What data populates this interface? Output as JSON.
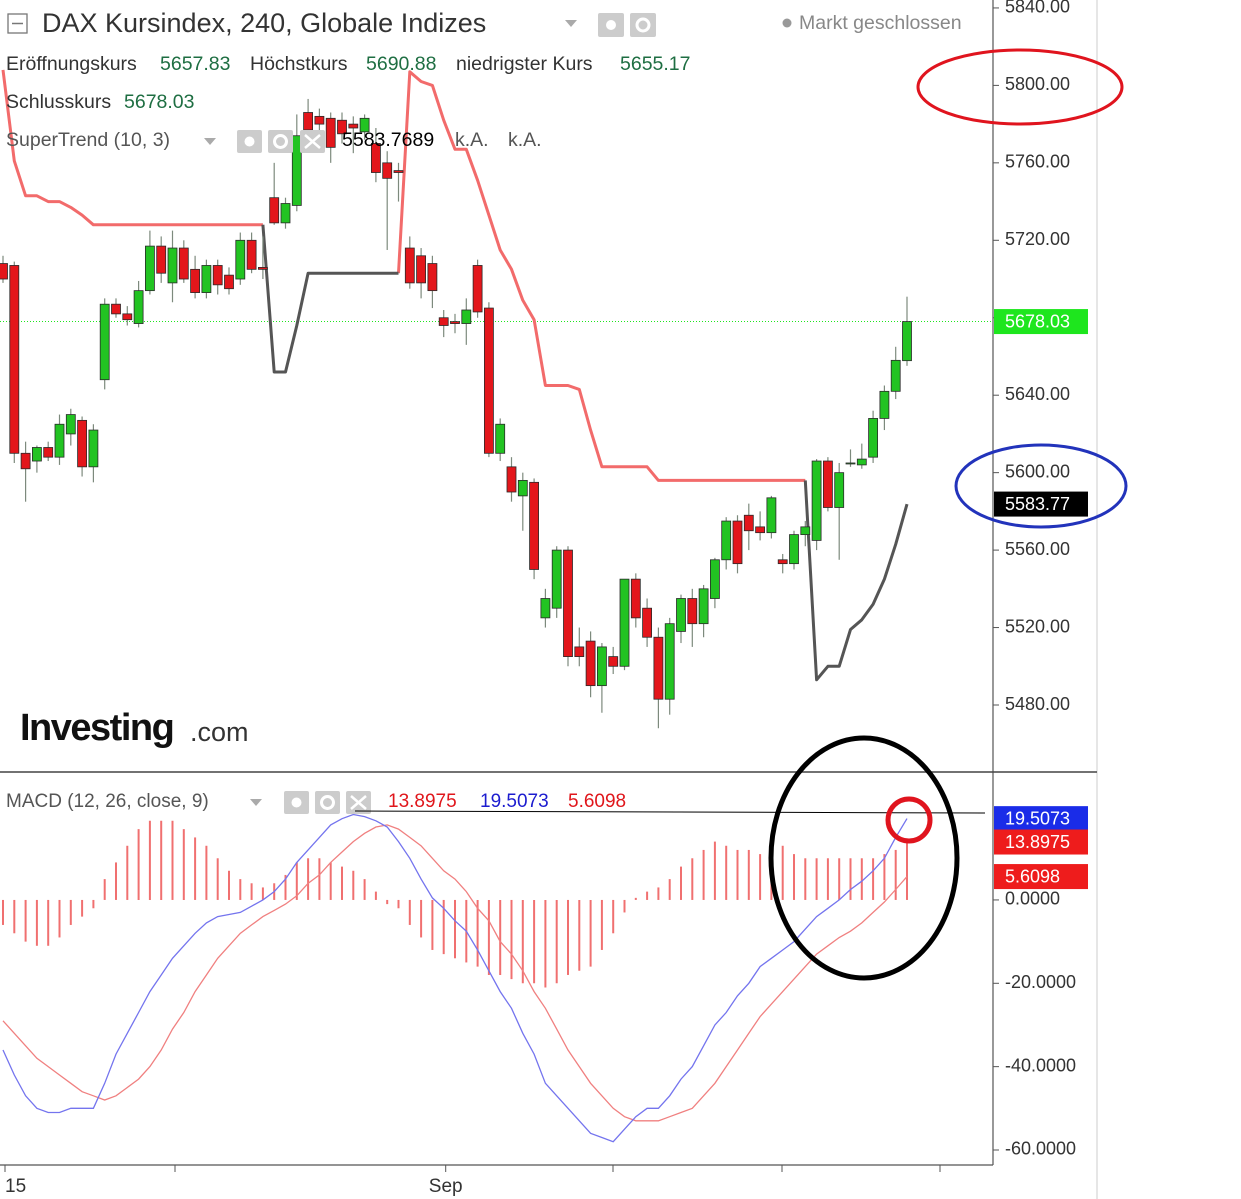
{
  "chart_data": [
    {
      "type": "candlestick",
      "title": "DAX Kursindex, 240, Globale Indizes",
      "status": "Markt geschlossen",
      "legend_labels": {
        "open": "Eröffnungskurs",
        "high": "Höchstkurs",
        "low": "niedrigster Kurs",
        "close": "Schlusskurs"
      },
      "brand": {
        "name": "Investing",
        "suffix": ".com"
      },
      "up_color": "#22c322",
      "down_color": "#e3161b",
      "last_price_color": "#1ee61e",
      "open": [
        5708,
        5707,
        5610,
        5606,
        5613,
        5608,
        5620,
        5627,
        5603,
        5648,
        5687,
        5682,
        5677,
        5694,
        5717,
        5698,
        5716,
        5705,
        5693,
        5707,
        5702,
        5700,
        5720,
        5706,
        5742,
        5729,
        5738,
        5786,
        5784,
        5783,
        5782,
        5780,
        5776,
        5770,
        5760,
        5756,
        5716,
        5712,
        5708,
        5680,
        5678,
        5677,
        5707,
        5685,
        5610,
        5603,
        5588,
        5595,
        5525,
        5530,
        5560,
        5510,
        5513,
        5490,
        5505,
        5500,
        5545,
        5530,
        5515,
        5483,
        5518,
        5535,
        5522,
        5535,
        5555,
        5575,
        5578,
        5572,
        5569,
        5555,
        5553,
        5568,
        5565,
        5606,
        5582,
        5605,
        5604,
        5608,
        5628,
        5642,
        5657.83
      ],
      "high": [
        5712,
        5709,
        5616,
        5614,
        5616,
        5630,
        5633,
        5629,
        5625,
        5690,
        5690,
        5686,
        5699,
        5725,
        5722,
        5725,
        5720,
        5712,
        5710,
        5710,
        5706,
        5724,
        5724,
        5722,
        5760,
        5742,
        5785,
        5793,
        5788,
        5786,
        5786,
        5784,
        5785,
        5778,
        5766,
        5760,
        5722,
        5716,
        5712,
        5684,
        5682,
        5690,
        5710,
        5688,
        5628,
        5608,
        5600,
        5597,
        5540,
        5562,
        5562,
        5520,
        5518,
        5512,
        5510,
        5545,
        5548,
        5535,
        5520,
        5525,
        5537,
        5540,
        5542,
        5556,
        5577,
        5578,
        5584,
        5580,
        5588,
        5558,
        5570,
        5575,
        5607,
        5608,
        5605,
        5612,
        5615,
        5632,
        5645,
        5665,
        5690.88
      ],
      "low": [
        5698,
        5605,
        5585,
        5600,
        5606,
        5604,
        5614,
        5598,
        5595,
        5643,
        5680,
        5676,
        5675,
        5692,
        5698,
        5688,
        5698,
        5690,
        5690,
        5692,
        5692,
        5697,
        5703,
        5700,
        5728,
        5726,
        5735,
        5775,
        5776,
        5760,
        5770,
        5765,
        5772,
        5750,
        5715,
        5740,
        5695,
        5690,
        5685,
        5670,
        5672,
        5666,
        5680,
        5608,
        5606,
        5585,
        5570,
        5545,
        5520,
        5525,
        5500,
        5500,
        5484,
        5476,
        5496,
        5498,
        5520,
        5510,
        5468,
        5475,
        5512,
        5510,
        5515,
        5530,
        5550,
        5548,
        5560,
        5565,
        5566,
        5548,
        5550,
        5562,
        5560,
        5580,
        5555,
        5603,
        5602,
        5605,
        5622,
        5638,
        5655.17
      ],
      "close": [
        5700,
        5610,
        5602,
        5613,
        5608,
        5625,
        5630,
        5603,
        5622,
        5687,
        5682,
        5679,
        5694,
        5717,
        5703,
        5716,
        5700,
        5693,
        5707,
        5697,
        5695,
        5720,
        5705,
        5705,
        5729,
        5739,
        5774,
        5777,
        5780,
        5768,
        5775,
        5778,
        5783,
        5755,
        5752,
        5755,
        5698,
        5698,
        5694,
        5676,
        5677,
        5684,
        5683,
        5610,
        5625,
        5590,
        5596,
        5550,
        5535,
        5560,
        5505,
        5505,
        5490,
        5510,
        5500,
        5545,
        5525,
        5515,
        5483,
        5522,
        5535,
        5522,
        5540,
        5555,
        5575,
        5553,
        5570,
        5569,
        5587,
        5553,
        5568,
        5572,
        5606,
        5582,
        5600,
        5605,
        5607,
        5628,
        5642,
        5658,
        5678.03
      ],
      "indicator": {
        "name": "SuperTrend (10, 3)",
        "na_labels": [
          "k.A.",
          "k.A."
        ],
        "series": [
          {
            "color": "#f26b6b",
            "values": [
              5808,
              5761,
              5743,
              5743,
              5740,
              5740,
              5737,
              5733,
              5728,
              5728,
              5728,
              5728,
              5728,
              5728,
              5728,
              5728,
              5728,
              5728,
              5728,
              5728,
              5728,
              5728,
              5728,
              5728,
              null,
              null,
              null,
              null,
              null,
              null,
              null,
              null,
              null,
              null,
              null,
              5703,
              5807,
              5802,
              5800,
              5782,
              5767,
              5767,
              5751,
              5733,
              5715,
              5705,
              5689,
              5679,
              5645,
              5645,
              5645,
              5643,
              5622,
              5603,
              5603,
              5603,
              5603,
              5603,
              5596,
              5596,
              5596,
              5596,
              5596,
              5596,
              5596,
              5596,
              5596,
              5596,
              5596,
              5596,
              5596,
              5596,
              null,
              null,
              null,
              null,
              null,
              null,
              null,
              null,
              null
            ]
          },
          {
            "color": "#555555",
            "last_value_label": "5583.77",
            "values": [
              null,
              null,
              null,
              null,
              null,
              null,
              null,
              null,
              null,
              null,
              null,
              null,
              null,
              null,
              null,
              null,
              null,
              null,
              null,
              null,
              null,
              null,
              null,
              5728,
              5652,
              5652,
              5676,
              5703,
              5703,
              5703,
              5703,
              5703,
              5703,
              5703,
              5703,
              5703,
              null,
              null,
              null,
              null,
              null,
              null,
              null,
              null,
              null,
              null,
              null,
              null,
              null,
              null,
              null,
              null,
              null,
              null,
              null,
              null,
              null,
              null,
              null,
              null,
              null,
              null,
              null,
              null,
              null,
              null,
              null,
              null,
              null,
              null,
              null,
              5596,
              5493,
              5500,
              5500,
              5519,
              5524,
              5532,
              5545,
              5563,
              5583.7689
            ]
          }
        ]
      },
      "ylim": [
        5445.4,
        5844.1
      ],
      "yticks": [
        {
          "value": 5840,
          "label": "5840.00"
        },
        {
          "value": 5800,
          "label": "5800.00"
        },
        {
          "value": 5760,
          "label": "5760.00"
        },
        {
          "value": 5720,
          "label": "5720.00"
        },
        {
          "value": 5680,
          "label": "5680.00"
        },
        {
          "value": 5640,
          "label": "5640.00"
        },
        {
          "value": 5600,
          "label": "5600.00"
        },
        {
          "value": 5560,
          "label": "5560.00"
        },
        {
          "value": 5520,
          "label": "5520.00"
        },
        {
          "value": 5480,
          "label": "5480.00"
        }
      ]
    },
    {
      "type": "macd",
      "title": "MACD (12, 26, close, 9)",
      "categories": [
        "15",
        null,
        null,
        null,
        null,
        null,
        null,
        null,
        null,
        null,
        null,
        null,
        null,
        null,
        null,
        null,
        null,
        null,
        null,
        null,
        null,
        null,
        null,
        null,
        null,
        null,
        null,
        null,
        null,
        null,
        null,
        null,
        null,
        null,
        null,
        null,
        null,
        null,
        null,
        "Sep",
        null,
        null,
        null,
        null,
        null,
        null,
        null,
        null,
        null,
        null,
        null,
        null,
        null,
        null,
        null,
        null,
        null,
        null,
        null,
        null,
        null,
        null,
        null,
        null,
        null,
        null,
        null,
        null,
        null,
        null,
        null,
        null,
        null,
        null,
        null,
        null,
        null,
        null,
        null,
        null,
        null
      ],
      "histogram": {
        "color": "#f07070",
        "values": [
          -6,
          -8,
          -10,
          -11,
          -11,
          -9,
          -6,
          -4,
          -2,
          5,
          9,
          13,
          17,
          19,
          19,
          19,
          17,
          15,
          13,
          10,
          7,
          5,
          4,
          3,
          4,
          6,
          9,
          10,
          10,
          9,
          8,
          7,
          5,
          2,
          -1,
          -2,
          -6,
          -9,
          -12,
          -13,
          -14,
          -15,
          -16,
          -18,
          -18,
          -19,
          -20,
          -20,
          -21,
          -20,
          -18,
          -17,
          -16,
          -12,
          -8,
          -3,
          0.5,
          2,
          3,
          5,
          8,
          10,
          12,
          14,
          13,
          12,
          12,
          11,
          12,
          13,
          11,
          10,
          10,
          10,
          10,
          10,
          10,
          10,
          11,
          12,
          13.8975
        ]
      },
      "macd": {
        "color": "#7474ee",
        "values": [
          -36,
          -42,
          -47,
          -50,
          -51,
          -51,
          -50,
          -50,
          -50,
          -44,
          -37,
          -32,
          -27,
          -22,
          -18,
          -14,
          -11,
          -8,
          -5.5,
          -4,
          -3.5,
          -3,
          -1.5,
          0,
          2,
          5,
          9,
          12,
          15,
          18,
          19.5,
          20.5,
          20,
          19,
          17.5,
          14,
          10,
          5,
          0.5,
          -2,
          -5,
          -7.5,
          -12,
          -17,
          -22,
          -26,
          -32,
          -37,
          -44,
          -47,
          -50,
          -53,
          -56,
          -57,
          -58,
          -55,
          -52,
          -50,
          -50,
          -47,
          -43,
          -40,
          -35,
          -30,
          -27,
          -23,
          -20,
          -16,
          -14,
          -12,
          -10,
          -7,
          -4,
          -2,
          0,
          2.5,
          4.5,
          7,
          10,
          15,
          19.5073
        ]
      },
      "signal": {
        "color": "#f08080",
        "values": [
          -29,
          -32,
          -35,
          -38,
          -40,
          -42,
          -44,
          -46,
          -47,
          -48,
          -47,
          -45,
          -43,
          -40,
          -36,
          -31,
          -27,
          -22,
          -18,
          -14,
          -11,
          -8,
          -6,
          -4,
          -2.5,
          -1,
          1,
          4,
          6,
          9,
          11.5,
          14,
          16,
          17.5,
          18,
          17,
          15,
          13,
          10,
          7,
          5,
          2,
          -2,
          -5,
          -10,
          -13,
          -17,
          -22,
          -26,
          -31,
          -36,
          -40,
          -44,
          -47,
          -50,
          -52,
          -53,
          -53,
          -53,
          -52,
          -51,
          -50,
          -47,
          -44,
          -40,
          -36,
          -32,
          -28,
          -25,
          -22,
          -19,
          -16,
          -13,
          -11,
          -9,
          -7.5,
          -5.5,
          -3,
          -0.5,
          2.5,
          5.6098
        ]
      },
      "ylim": [
        -63.6,
        30.7
      ],
      "yticks": [
        {
          "value": 0,
          "label": "0.0000"
        },
        {
          "value": -20,
          "label": "-20.0000"
        },
        {
          "value": -40,
          "label": "-40.0000"
        },
        {
          "value": -60,
          "label": "-60.0000"
        }
      ]
    }
  ]
}
